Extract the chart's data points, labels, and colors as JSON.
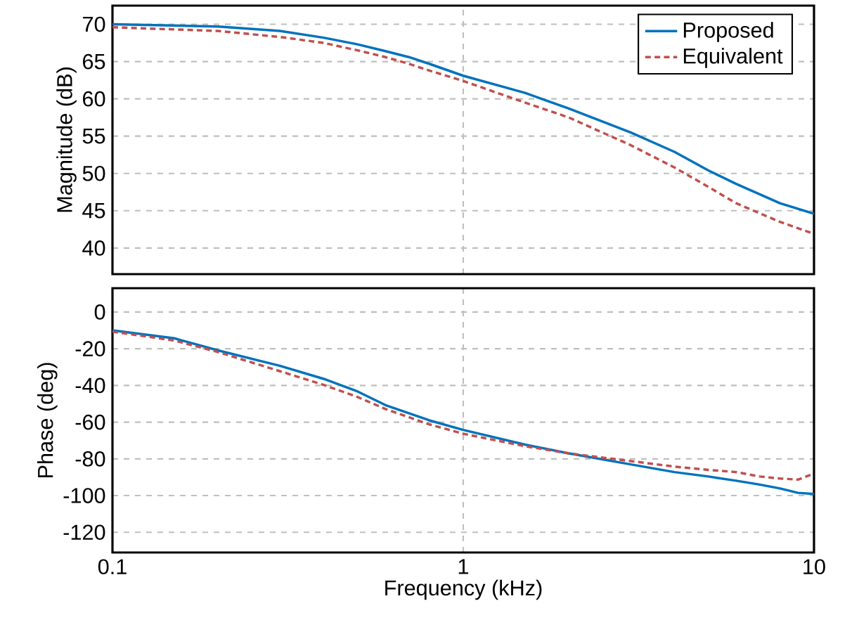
{
  "chart_data": [
    {
      "type": "line",
      "ylabel": "Magnitude (dB)",
      "log": "x",
      "grid": true,
      "legend": "top right",
      "tick_labels": "y",
      "xlim": [
        0.1,
        10
      ],
      "ylim": [
        36.5,
        72.5
      ],
      "xticks": [
        0.1,
        1,
        10
      ],
      "yticks": [
        40,
        45,
        50,
        55,
        60,
        65,
        70
      ],
      "x": [
        0.1,
        0.2,
        0.3,
        0.4,
        0.5,
        0.6,
        0.7,
        0.8,
        1,
        1.5,
        2,
        3,
        4,
        5,
        6,
        8,
        10
      ],
      "series": [
        {
          "name": "Proposed",
          "color": "#0072bd",
          "line_style": "solid",
          "values": [
            70,
            69.7,
            69.1,
            68.2,
            67.3,
            66.4,
            65.6,
            64.7,
            63.1,
            60.8,
            58.7,
            55.5,
            52.9,
            50.4,
            48.6,
            46,
            44.6
          ]
        },
        {
          "name": "Equivalent",
          "color": "#c0504d",
          "line_style": "dashed",
          "values": [
            69.6,
            69.1,
            68.3,
            67.5,
            66.5,
            65.6,
            64.7,
            63.8,
            62.4,
            59.5,
            57.5,
            53.8,
            50.8,
            48.2,
            46,
            43.5,
            41.9
          ]
        }
      ]
    },
    {
      "type": "line",
      "xlabel": "Frequency (kHz)",
      "ylabel": "Phase (deg)",
      "log": "x",
      "grid": true,
      "xlim": [
        0.1,
        10
      ],
      "ylim": [
        -131,
        13
      ],
      "xticks": [
        0.1,
        1,
        10
      ],
      "yticks": [
        -120,
        -100,
        -80,
        -60,
        -40,
        -20,
        0
      ],
      "x": [
        0.1,
        0.15,
        0.2,
        0.3,
        0.4,
        0.5,
        0.6,
        0.8,
        1,
        1.5,
        2,
        3,
        4,
        5,
        6,
        7,
        8,
        9,
        10
      ],
      "series": [
        {
          "color": "#0072bd",
          "line_style": "solid",
          "values": [
            -10,
            -14.3,
            -20.9,
            -29.3,
            -36.4,
            -43.3,
            -50.7,
            -59,
            -64.2,
            -72.2,
            -77,
            -83,
            -87.2,
            -89.6,
            -91.9,
            -94,
            -96.1,
            -98.5,
            -99.1
          ]
        },
        {
          "color": "#c0504d",
          "line_style": "dashed",
          "values": [
            -10.7,
            -15.5,
            -21.8,
            -32.2,
            -39.7,
            -46.3,
            -52.8,
            -61.2,
            -66.3,
            -73.1,
            -77,
            -81.2,
            -84.2,
            -86,
            -87.2,
            -89.6,
            -90.7,
            -91.3,
            -88
          ]
        }
      ]
    }
  ]
}
